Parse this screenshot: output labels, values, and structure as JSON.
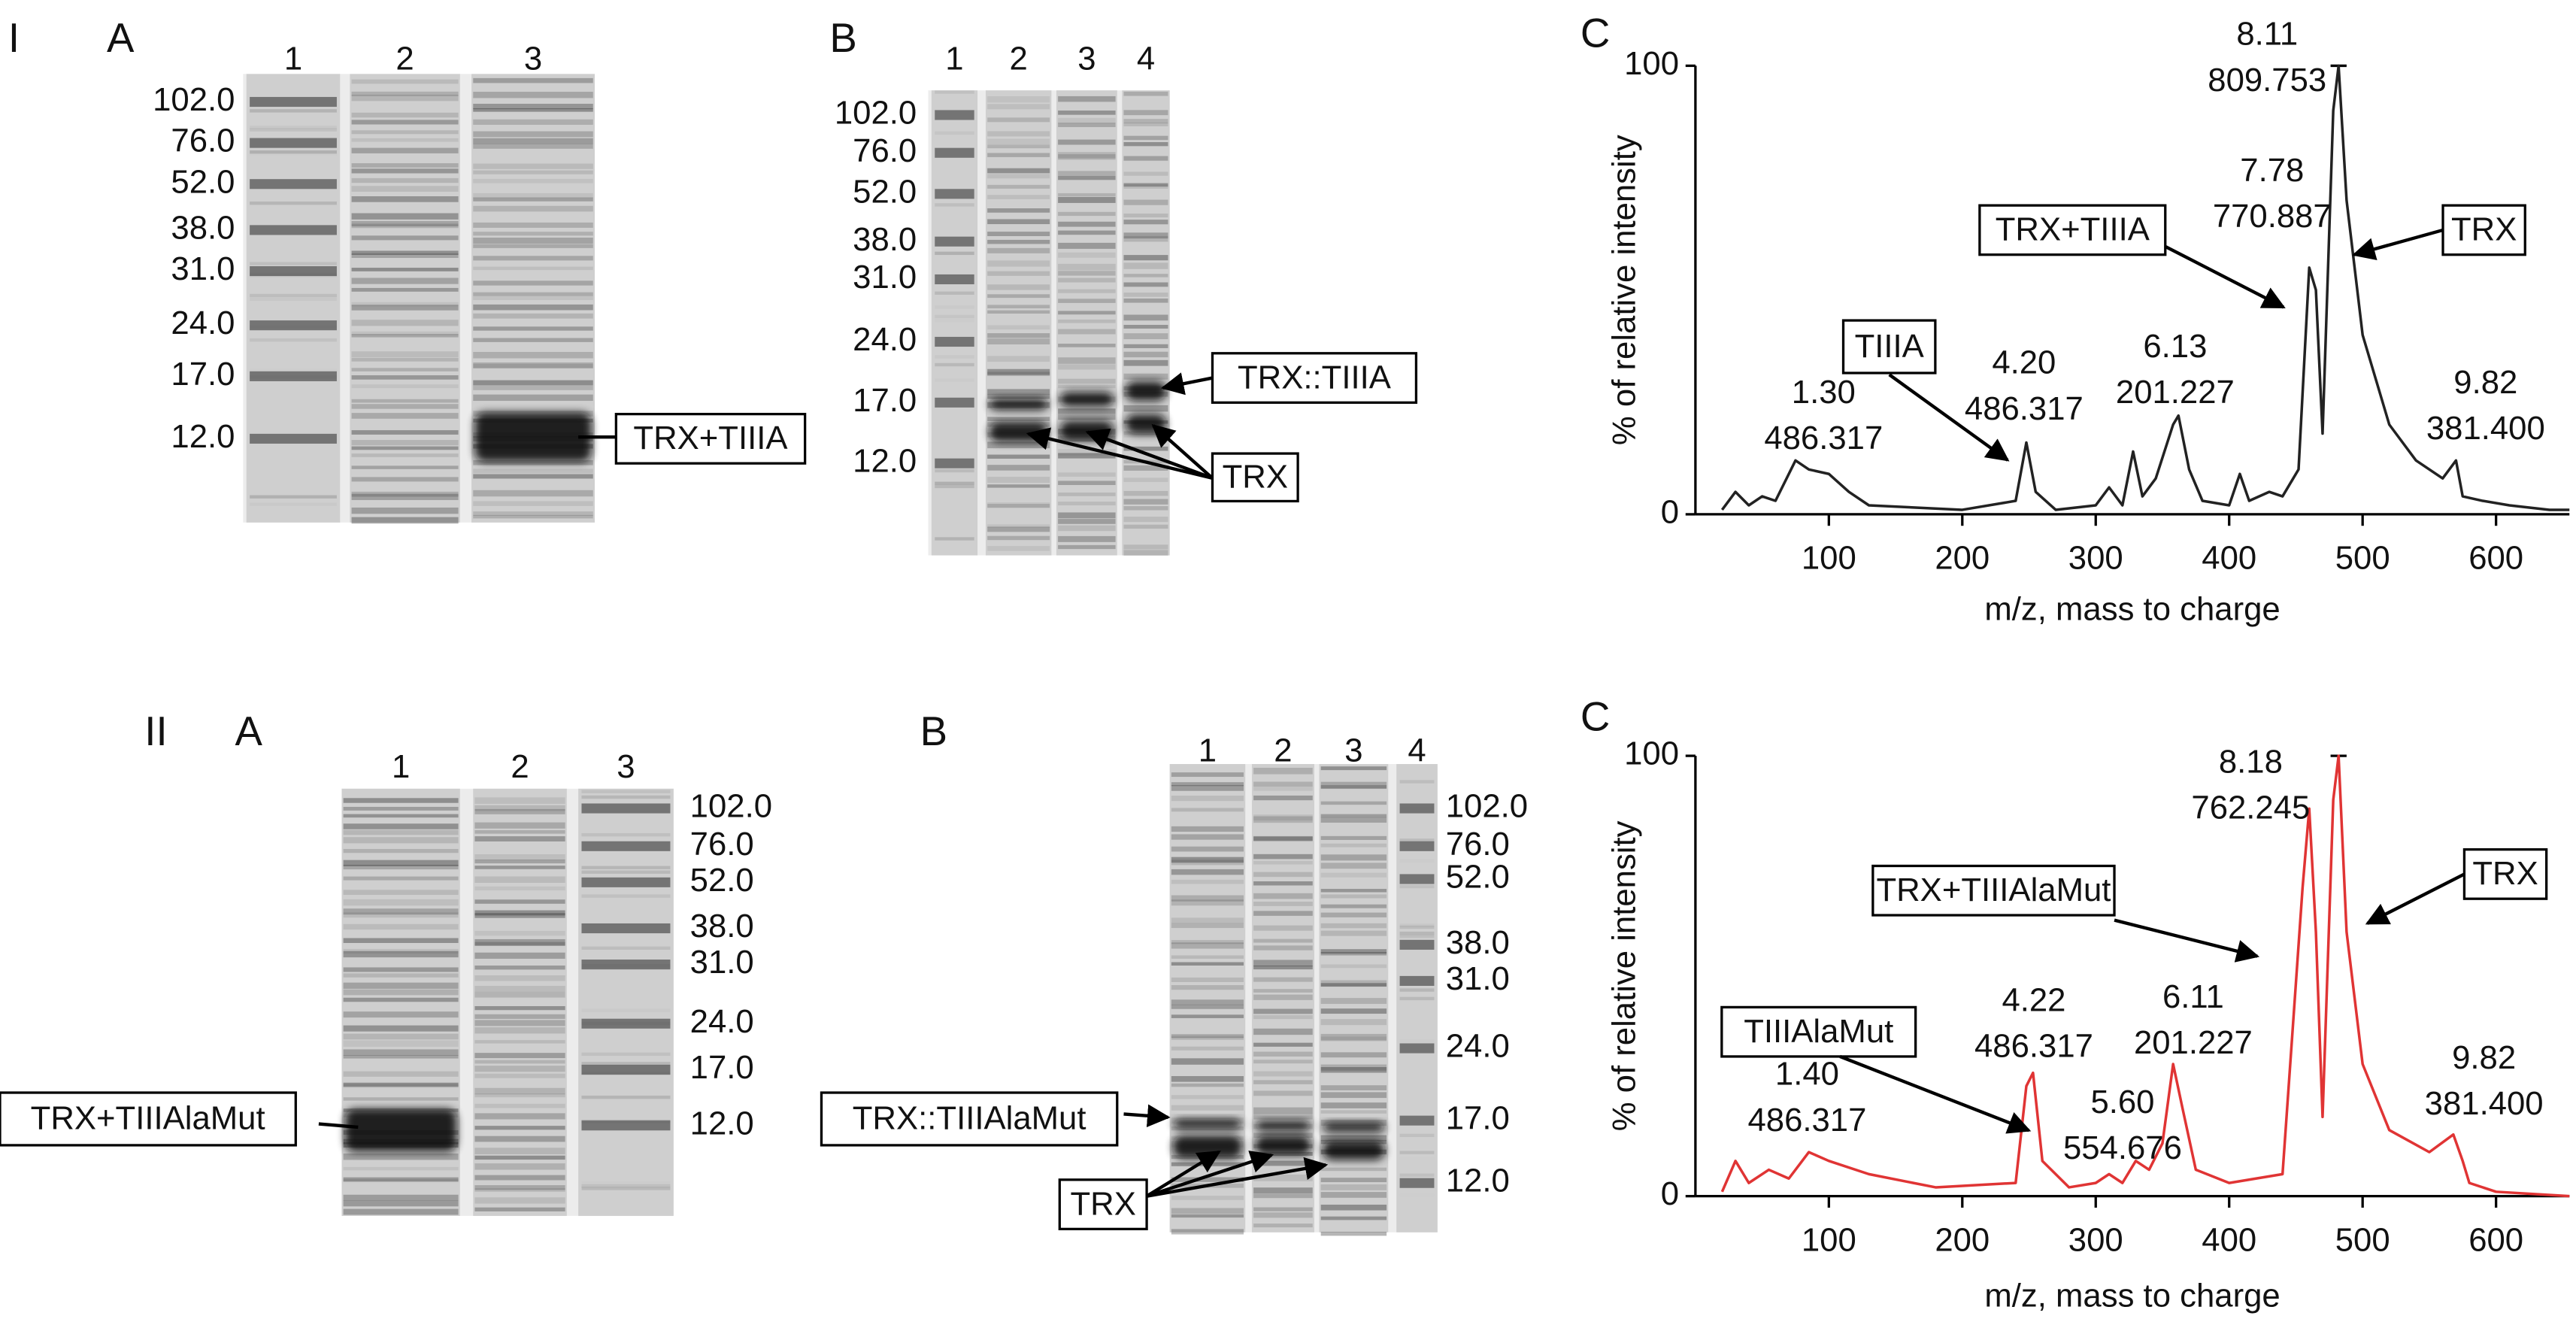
{
  "panel_I": {
    "numeral": "I",
    "gel_a": {
      "letter": "A",
      "lanes": [
        "1",
        "2",
        "3"
      ],
      "markers": [
        "102.0",
        "76.0",
        "52.0",
        "38.0",
        "31.0",
        "24.0",
        "17.0",
        "12.0"
      ],
      "callouts": [
        "TRX+TIIIA"
      ]
    },
    "gel_b": {
      "letter": "B",
      "lanes": [
        "1",
        "2",
        "3",
        "4"
      ],
      "markers": [
        "102.0",
        "76.0",
        "52.0",
        "38.0",
        "31.0",
        "24.0",
        "17.0",
        "12.0"
      ],
      "callouts": [
        "TRX::TIIIA",
        "TRX"
      ]
    }
  },
  "panel_II": {
    "numeral": "II",
    "gel_a": {
      "letter": "A",
      "lanes": [
        "1",
        "2",
        "3"
      ],
      "markers": [
        "102.0",
        "76.0",
        "52.0",
        "38.0",
        "31.0",
        "24.0",
        "17.0",
        "12.0"
      ],
      "callouts": [
        "TRX+TIIIAlaMut"
      ]
    },
    "gel_b": {
      "letter": "B",
      "lanes": [
        "1",
        "2",
        "3",
        "4"
      ],
      "markers": [
        "102.0",
        "76.0",
        "52.0",
        "38.0",
        "31.0",
        "24.0",
        "17.0",
        "12.0"
      ],
      "callouts": [
        "TRX::TIIIAlaMut",
        "TRX"
      ]
    }
  },
  "chart_data": [
    {
      "type": "line",
      "title": "C",
      "x_label": "m/z, mass to charge",
      "y_label": "% of relative intensity",
      "xlim": [
        0,
        655
      ],
      "ylim": [
        0,
        100
      ],
      "xticks": [
        100,
        200,
        300,
        400,
        500,
        600
      ],
      "yticks": [
        0,
        100
      ],
      "x": [
        20,
        30,
        40,
        50,
        60,
        75,
        85,
        100,
        115,
        130,
        200,
        240,
        248,
        255,
        270,
        300,
        310,
        320,
        328,
        335,
        345,
        358,
        362,
        370,
        380,
        400,
        408,
        415,
        430,
        440,
        448,
        452,
        460,
        465,
        470,
        478,
        482,
        488,
        500,
        520,
        540,
        560,
        570,
        575,
        590,
        610,
        640,
        655
      ],
      "series": [
        {
          "color": "#222222",
          "values": [
            1,
            5,
            2,
            4,
            3,
            12,
            10,
            9,
            5,
            2,
            1,
            3,
            16,
            5,
            1,
            2,
            6,
            2,
            14,
            4,
            8,
            20,
            22,
            10,
            3,
            2,
            9,
            3,
            5,
            4,
            8,
            10,
            55,
            50,
            18,
            90,
            100,
            70,
            40,
            20,
            12,
            8,
            12,
            4,
            3,
            2,
            1,
            1
          ]
        }
      ],
      "annotations": [
        {
          "lines": [
            "1.30",
            "486.317"
          ]
        },
        {
          "lines": [
            "4.20",
            "486.317"
          ]
        },
        {
          "lines": [
            "6.13",
            "201.227"
          ]
        },
        {
          "lines": [
            "7.78",
            "770.887"
          ]
        },
        {
          "lines": [
            "8.11",
            "809.753"
          ]
        },
        {
          "lines": [
            "9.82",
            "381.400"
          ]
        }
      ],
      "callouts": [
        "TIIIA",
        "TRX+TIIIA",
        "TRX"
      ]
    },
    {
      "type": "line",
      "title": "C",
      "x_label": "m/z, mass to charge",
      "y_label": "% of relative intensity",
      "xlim": [
        0,
        655
      ],
      "ylim": [
        0,
        100
      ],
      "xticks": [
        100,
        200,
        300,
        400,
        500,
        600
      ],
      "yticks": [
        0,
        100
      ],
      "x": [
        20,
        30,
        40,
        55,
        70,
        80,
        85,
        100,
        130,
        180,
        240,
        248,
        253,
        260,
        280,
        300,
        310,
        320,
        330,
        340,
        350,
        358,
        365,
        375,
        400,
        440,
        455,
        460,
        465,
        470,
        478,
        482,
        488,
        500,
        520,
        550,
        568,
        575,
        580,
        600,
        655
      ],
      "series": [
        {
          "color": "#e03434",
          "values": [
            1,
            8,
            3,
            6,
            4,
            8,
            10,
            8,
            5,
            2,
            3,
            25,
            28,
            8,
            2,
            3,
            5,
            3,
            8,
            6,
            12,
            30,
            20,
            6,
            3,
            5,
            70,
            88,
            60,
            18,
            90,
            100,
            60,
            30,
            15,
            10,
            14,
            8,
            3,
            1,
            0
          ]
        }
      ],
      "annotations": [
        {
          "lines": [
            "1.40",
            "486.317"
          ]
        },
        {
          "lines": [
            "4.22",
            "486.317"
          ]
        },
        {
          "lines": [
            "5.60",
            "554.676"
          ]
        },
        {
          "lines": [
            "6.11",
            "201.227"
          ]
        },
        {
          "lines": [
            "8.18",
            "762.245"
          ]
        },
        {
          "lines": [
            "9.82",
            "381.400"
          ]
        }
      ],
      "callouts": [
        "TIIIAlaMut",
        "TRX+TIIIAlaMut",
        "TRX"
      ]
    }
  ]
}
